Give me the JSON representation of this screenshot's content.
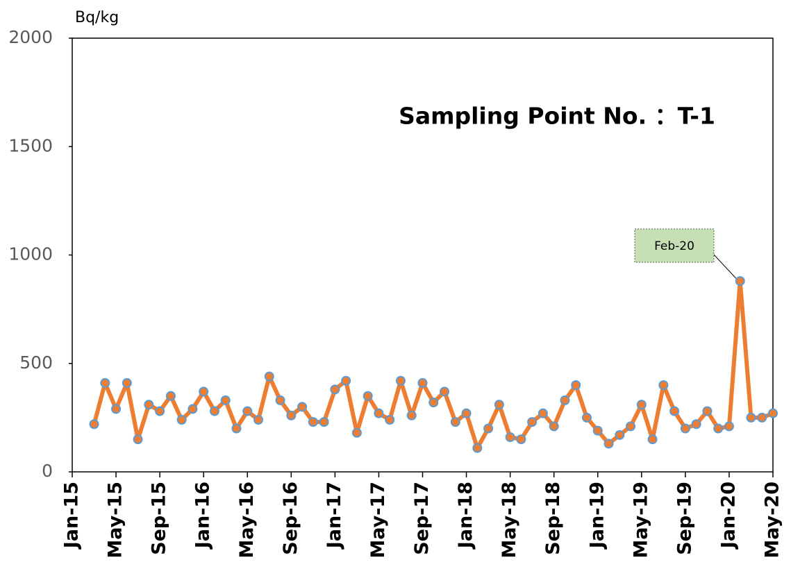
{
  "chart_data": {
    "type": "line",
    "title": "Sampling Point No. ：T-1",
    "y_label": "Bq/kg",
    "annotation": "Feb-20",
    "x": [
      "Mar-15",
      "Apr-15",
      "May-15",
      "Jun-15",
      "Jul-15",
      "Aug-15",
      "Sep-15",
      "Oct-15",
      "Nov-15",
      "Dec-15",
      "Jan-16",
      "Feb-16",
      "Mar-16",
      "Apr-16",
      "May-16",
      "Jun-16",
      "Jul-16",
      "Aug-16",
      "Sep-16",
      "Oct-16",
      "Nov-16",
      "Dec-16",
      "Jan-17",
      "Feb-17",
      "Mar-17",
      "Apr-17",
      "May-17",
      "Jun-17",
      "Jul-17",
      "Aug-17",
      "Sep-17",
      "Oct-17",
      "Nov-17",
      "Dec-17",
      "Jan-18",
      "Feb-18",
      "Mar-18",
      "Apr-18",
      "May-18",
      "Jun-18",
      "Jul-18",
      "Aug-18",
      "Sep-18",
      "Oct-18",
      "Nov-18",
      "Dec-18",
      "Jan-19",
      "Feb-19",
      "Mar-19",
      "Apr-19",
      "May-19",
      "Jun-19",
      "Jul-19",
      "Aug-19",
      "Sep-19",
      "Oct-19",
      "Nov-19",
      "Dec-19",
      "Jan-20",
      "Feb-20",
      "Mar-20",
      "Apr-20",
      "May-20"
    ],
    "series": [
      {
        "color": "#ed7d31",
        "marker_edge": "#5b9bd5",
        "values": [
          220,
          410,
          290,
          410,
          150,
          310,
          280,
          350,
          240,
          290,
          370,
          280,
          330,
          200,
          280,
          240,
          440,
          330,
          260,
          300,
          230,
          230,
          380,
          420,
          180,
          350,
          270,
          240,
          420,
          260,
          410,
          320,
          370,
          230,
          270,
          110,
          200,
          310,
          160,
          150,
          230,
          270,
          210,
          330,
          400,
          250,
          190,
          130,
          170,
          210,
          310,
          150,
          400,
          280,
          200,
          220,
          280,
          200,
          210,
          880,
          250,
          250,
          270
        ]
      }
    ],
    "xlim": [
      "Jan-15",
      "May-20"
    ],
    "xticks": [
      "Jan-15",
      "May-15",
      "Sep-15",
      "Jan-16",
      "May-16",
      "Sep-16",
      "Jan-17",
      "May-17",
      "Sep-17",
      "Jan-18",
      "May-18",
      "Sep-18",
      "Jan-19",
      "May-19",
      "Sep-19",
      "Jan-20",
      "May-20"
    ],
    "ylim": [
      0,
      2000
    ],
    "yticks": [
      0,
      500,
      1000,
      1500,
      2000
    ],
    "grid": false
  }
}
